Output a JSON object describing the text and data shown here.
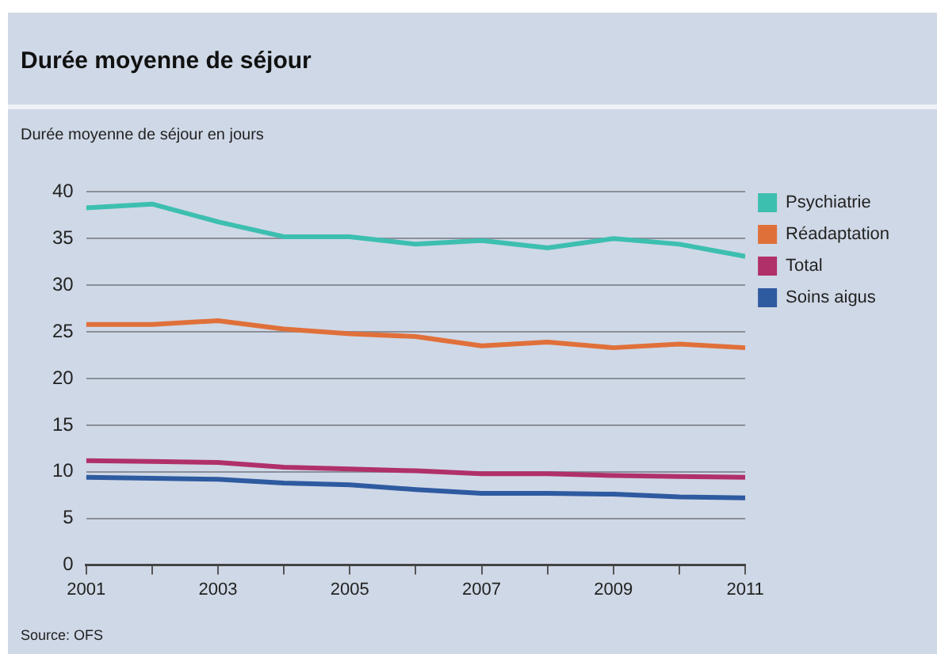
{
  "chart_data": {
    "type": "line",
    "title": "Durée moyenne de séjour",
    "subtitle": "Durée moyenne de séjour en jours",
    "x": [
      2001,
      2002,
      2003,
      2004,
      2005,
      2006,
      2007,
      2008,
      2009,
      2010,
      2011
    ],
    "series": [
      {
        "name": "Psychiatrie",
        "color": "#3dbfb0",
        "values": [
          38.3,
          38.7,
          36.8,
          35.2,
          35.2,
          34.4,
          34.8,
          34.0,
          35.0,
          34.4,
          33.1
        ]
      },
      {
        "name": "Réadaptation",
        "color": "#e0703a",
        "values": [
          25.8,
          25.8,
          26.2,
          25.3,
          24.8,
          24.5,
          23.5,
          23.9,
          23.3,
          23.7,
          23.3
        ]
      },
      {
        "name": "Total",
        "color": "#b0306a",
        "values": [
          11.2,
          11.1,
          11.0,
          10.5,
          10.3,
          10.1,
          9.8,
          9.8,
          9.6,
          9.5,
          9.4
        ]
      },
      {
        "name": "Soins aigus",
        "color": "#2e5aa0",
        "values": [
          9.4,
          9.3,
          9.2,
          8.8,
          8.6,
          8.1,
          7.7,
          7.7,
          7.6,
          7.3,
          7.2
        ]
      }
    ],
    "xlim": [
      2001,
      2011
    ],
    "xticks": [
      2001,
      {
        "value": 2002,
        "label": null
      },
      2003,
      {
        "value": 2004,
        "label": null
      },
      2005,
      {
        "value": 2006,
        "label": null
      },
      2007,
      {
        "value": 2008,
        "label": null
      },
      2009,
      {
        "value": 2010,
        "label": null
      },
      2011
    ],
    "ylim": [
      0,
      40
    ],
    "yticks": [
      0,
      5,
      10,
      15,
      20,
      25,
      30,
      35,
      40
    ],
    "grid": "y",
    "legend": "top right",
    "marker": "none",
    "line_style": "solid",
    "annotations": [
      "Source: OFS"
    ]
  }
}
